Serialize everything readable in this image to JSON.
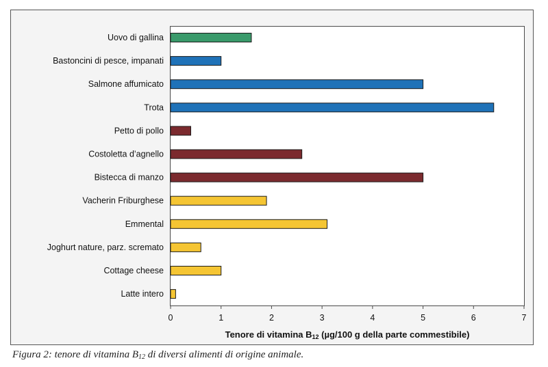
{
  "chart_data": {
    "type": "bar",
    "orientation": "horizontal",
    "categories": [
      "Uovo di gallina",
      "Bastoncini di pesce, impanati",
      "Salmone affumicato",
      "Trota",
      "Petto di pollo",
      "Costoletta d’agnello",
      "Bistecca di manzo",
      "Vacherin Friburghese",
      "Emmental",
      "Joghurt nature, parz. scremato",
      "Cottage cheese",
      "Latte intero"
    ],
    "values": [
      1.6,
      1.0,
      5.0,
      6.4,
      0.4,
      2.6,
      5.0,
      1.9,
      3.1,
      0.6,
      1.0,
      0.1
    ],
    "bar_colors": [
      "#3a9a6b",
      "#1f72b8",
      "#1f72b8",
      "#1f72b8",
      "#7b2a2e",
      "#7b2a2e",
      "#7b2a2e",
      "#f5c533",
      "#f5c533",
      "#f5c533",
      "#f5c533",
      "#f5c533"
    ],
    "xlim": [
      0,
      7
    ],
    "xticks": [
      "0",
      "1",
      "2",
      "3",
      "4",
      "5",
      "6",
      "7"
    ],
    "xlabel": {
      "prefix": "Tenore di vitamina B",
      "sub": "12",
      "suffix": " (µg/100 g della parte commestibile)"
    },
    "grid": false,
    "legend": "none"
  },
  "caption": {
    "prefix": "Figura 2: tenore di vitamina B",
    "sub": "12",
    "suffix": " di diversi alimenti di origine animale."
  }
}
